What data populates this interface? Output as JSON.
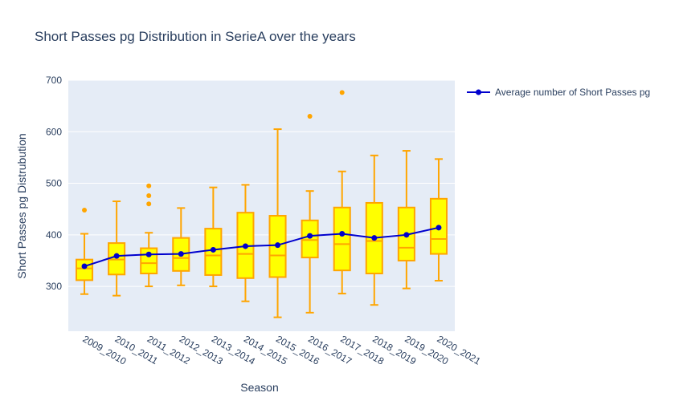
{
  "chart_data": {
    "type": "box",
    "title": "Short Passes pg Distribution in SerieA over the years",
    "xlabel": "Season",
    "ylabel": "Short Passes pg Distrubution",
    "ylim": [
      213,
      700
    ],
    "yticks": [
      300,
      400,
      500,
      600,
      700
    ],
    "grid": true,
    "legend_position": "top-right",
    "categories": [
      "2009_2010",
      "2010_2011",
      "2011_2012",
      "2012_2013",
      "2013_2014",
      "2014_2015",
      "2015_2016",
      "2016_2017",
      "2017_2018",
      "2018_2019",
      "2019_2020",
      "2020_2021"
    ],
    "box_series": {
      "colors": {
        "fill": "#ffff00",
        "line": "#ffa500",
        "outlier": "#ffa500"
      },
      "boxes": [
        {
          "min": 285,
          "q1": 312,
          "median": 335,
          "q3": 352,
          "max": 402,
          "outliers": [
            448
          ]
        },
        {
          "min": 282,
          "q1": 323,
          "median": 352,
          "q3": 384,
          "max": 465,
          "outliers": []
        },
        {
          "min": 300,
          "q1": 325,
          "median": 345,
          "q3": 374,
          "max": 404,
          "outliers": [
            460,
            476,
            495
          ]
        },
        {
          "min": 302,
          "q1": 330,
          "median": 355,
          "q3": 394,
          "max": 452,
          "outliers": []
        },
        {
          "min": 300,
          "q1": 322,
          "median": 360,
          "q3": 412,
          "max": 492,
          "outliers": []
        },
        {
          "min": 271,
          "q1": 316,
          "median": 363,
          "q3": 443,
          "max": 497,
          "outliers": []
        },
        {
          "min": 240,
          "q1": 318,
          "median": 360,
          "q3": 437,
          "max": 605,
          "outliers": []
        },
        {
          "min": 249,
          "q1": 356,
          "median": 390,
          "q3": 428,
          "max": 485,
          "outliers": [
            630
          ]
        },
        {
          "min": 286,
          "q1": 331,
          "median": 382,
          "q3": 453,
          "max": 523,
          "outliers": [
            676
          ]
        },
        {
          "min": 264,
          "q1": 325,
          "median": 388,
          "q3": 462,
          "max": 554,
          "outliers": []
        },
        {
          "min": 296,
          "q1": 350,
          "median": 375,
          "q3": 453,
          "max": 563,
          "outliers": []
        },
        {
          "min": 311,
          "q1": 363,
          "median": 392,
          "q3": 470,
          "max": 547,
          "outliers": []
        }
      ]
    },
    "line_series": {
      "name": "Average number of Short Passes pg",
      "color": "#0000cd",
      "values": [
        339,
        359,
        362,
        363,
        371,
        378,
        380,
        398,
        402,
        394,
        400,
        414
      ]
    }
  }
}
